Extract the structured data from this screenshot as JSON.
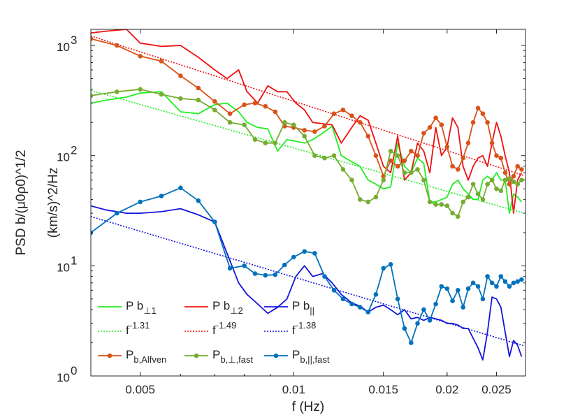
{
  "chart_data": {
    "type": "line",
    "xscale": "log",
    "yscale": "log",
    "xlim": [
      0.004,
      0.0285
    ],
    "ylim": [
      1,
      1400
    ],
    "xlabel": "f (Hz)",
    "ylabel_line1": "PSD b/(μ0ρ0)^1/2",
    "ylabel_line2": "(km/s)^2/Hz",
    "xticks": [
      {
        "value": 0.005,
        "label": "0.005"
      },
      {
        "value": 0.01,
        "label": "0.01"
      },
      {
        "value": 0.015,
        "label": "0.015"
      },
      {
        "value": 0.02,
        "label": "0.02"
      },
      {
        "value": 0.025,
        "label": "0.025"
      }
    ],
    "yticks": [
      {
        "value": 1,
        "base": "10",
        "exp": "0"
      },
      {
        "value": 10,
        "base": "10",
        "exp": "1"
      },
      {
        "value": 100,
        "base": "10",
        "exp": "2"
      },
      {
        "value": 1000,
        "base": "10",
        "exp": "3"
      }
    ],
    "series": [
      {
        "name": "Pb_perp1",
        "label_main": "P b",
        "label_sub": "⊥1",
        "color": "#22ee22",
        "style": "solid",
        "markers": false,
        "x": [
          0.004,
          0.0043,
          0.0047,
          0.005,
          0.0055,
          0.006,
          0.0065,
          0.007,
          0.0074,
          0.0078,
          0.0081,
          0.0085,
          0.0089,
          0.0093,
          0.0097,
          0.0101,
          0.0105,
          0.0109,
          0.0114,
          0.0119,
          0.0124,
          0.013,
          0.0135,
          0.014,
          0.0145,
          0.015,
          0.0155,
          0.016,
          0.0165,
          0.017,
          0.0175,
          0.018,
          0.0185,
          0.019,
          0.0195,
          0.02,
          0.0205,
          0.021,
          0.0215,
          0.022,
          0.0225,
          0.023,
          0.0235,
          0.024,
          0.0245,
          0.025,
          0.0255,
          0.026,
          0.0265,
          0.027,
          0.0275,
          0.028
        ],
        "y": [
          300,
          320,
          340,
          370,
          380,
          250,
          240,
          290,
          300,
          250,
          200,
          180,
          175,
          110,
          140,
          135,
          130,
          140,
          160,
          185,
          100,
          88,
          80,
          60,
          55,
          50,
          52,
          130,
          80,
          70,
          95,
          85,
          38,
          38,
          40,
          42,
          55,
          60,
          50,
          45,
          40,
          40,
          60,
          65,
          60,
          70,
          60,
          60,
          30,
          45,
          42,
          38
        ]
      },
      {
        "name": "Pb_perp2",
        "label_main": "P b",
        "label_sub": "⊥2",
        "color": "#ee1111",
        "style": "solid",
        "markers": false,
        "x": [
          0.004,
          0.0043,
          0.0047,
          0.005,
          0.0055,
          0.006,
          0.0065,
          0.007,
          0.0074,
          0.0078,
          0.0081,
          0.0085,
          0.0089,
          0.0093,
          0.0097,
          0.0101,
          0.0105,
          0.0109,
          0.0114,
          0.0119,
          0.0124,
          0.013,
          0.0135,
          0.014,
          0.0145,
          0.015,
          0.0155,
          0.016,
          0.0165,
          0.017,
          0.0175,
          0.018,
          0.0185,
          0.019,
          0.0195,
          0.02,
          0.0205,
          0.021,
          0.0215,
          0.022,
          0.0225,
          0.023,
          0.0235,
          0.024,
          0.0245,
          0.025,
          0.0255,
          0.026,
          0.0265,
          0.027,
          0.0275,
          0.028
        ],
        "y": [
          1300,
          1350,
          1400,
          1050,
          980,
          1000,
          780,
          600,
          500,
          600,
          380,
          300,
          430,
          380,
          380,
          300,
          260,
          200,
          195,
          190,
          130,
          180,
          230,
          210,
          130,
          80,
          70,
          150,
          60,
          70,
          130,
          110,
          70,
          180,
          100,
          120,
          220,
          180,
          80,
          60,
          80,
          95,
          100,
          80,
          130,
          200,
          150,
          100,
          70,
          30,
          60,
          70
        ]
      },
      {
        "name": "Pb_par",
        "label_main": "P b",
        "label_sub": "||",
        "color": "#1515dd",
        "style": "solid",
        "markers": false,
        "x": [
          0.004,
          0.0043,
          0.0047,
          0.005,
          0.0055,
          0.006,
          0.0065,
          0.007,
          0.0074,
          0.0078,
          0.0081,
          0.0085,
          0.0089,
          0.0093,
          0.0097,
          0.0101,
          0.0105,
          0.0109,
          0.0114,
          0.0119,
          0.0124,
          0.013,
          0.0135,
          0.014,
          0.0145,
          0.015,
          0.0155,
          0.016,
          0.0165,
          0.017,
          0.0175,
          0.018,
          0.0185,
          0.019,
          0.0195,
          0.02,
          0.0205,
          0.021,
          0.0215,
          0.022,
          0.0225,
          0.023,
          0.0235,
          0.024,
          0.0245,
          0.025,
          0.0255,
          0.026,
          0.0265,
          0.027,
          0.0275,
          0.028
        ],
        "y": [
          35,
          32,
          30,
          30,
          31,
          33,
          29,
          25,
          13,
          7,
          5.5,
          4.5,
          3.7,
          4.2,
          5,
          8,
          10,
          8,
          8.5,
          7,
          5.5,
          4.6,
          4.3,
          3.8,
          4.2,
          4.4,
          4.0,
          3.6,
          4.0,
          3.3,
          3.4,
          3.2,
          3.4,
          3.3,
          3.2,
          3.0,
          3.0,
          2.9,
          2.7,
          2.7,
          2.2,
          1.8,
          1.4,
          2.5,
          5.2,
          5.0,
          4.2,
          2.5,
          1.5,
          2.1,
          1.9,
          1.5
        ]
      },
      {
        "name": "fit_perp1",
        "label_main": "f",
        "label_exp": "-1.31",
        "color": "#22ee22",
        "style": "dotted",
        "markers": false,
        "fit": {
          "amp": 390,
          "x0": 0.004,
          "slope": -1.31,
          "xmin": 0.004,
          "xmax": 0.0282
        }
      },
      {
        "name": "fit_perp2",
        "label_main": "f",
        "label_exp": "-1.49",
        "color": "#ee1111",
        "style": "dotted",
        "markers": false,
        "fit": {
          "amp": 1220,
          "x0": 0.004,
          "slope": -1.49,
          "xmin": 0.004,
          "xmax": 0.0282
        }
      },
      {
        "name": "fit_par",
        "label_main": "f",
        "label_exp": "-1.38",
        "color": "#1515dd",
        "style": "dotted",
        "markers": false,
        "fit": {
          "amp": 28,
          "x0": 0.004,
          "slope": -1.38,
          "xmin": 0.004,
          "xmax": 0.0282
        }
      },
      {
        "name": "Pb_Alfven",
        "label_main": "P",
        "label_sub": "b,Alfven",
        "color": "#d95319",
        "style": "solid",
        "markers": true,
        "x": [
          0.004,
          0.0045,
          0.005,
          0.0055,
          0.006,
          0.0065,
          0.007,
          0.0075,
          0.008,
          0.0084,
          0.0088,
          0.0092,
          0.0096,
          0.01,
          0.0105,
          0.011,
          0.0115,
          0.012,
          0.0125,
          0.013,
          0.0135,
          0.014,
          0.0145,
          0.015,
          0.0155,
          0.016,
          0.0165,
          0.017,
          0.0175,
          0.018,
          0.0185,
          0.019,
          0.0195,
          0.02,
          0.0205,
          0.021,
          0.0215,
          0.022,
          0.0225,
          0.023,
          0.0235,
          0.024,
          0.0245,
          0.025,
          0.0255,
          0.026,
          0.0265,
          0.027,
          0.0275,
          0.028
        ],
        "y": [
          1150,
          1000,
          800,
          720,
          530,
          410,
          310,
          240,
          290,
          300,
          280,
          250,
          185,
          180,
          170,
          165,
          185,
          240,
          260,
          230,
          200,
          150,
          100,
          65,
          90,
          80,
          90,
          110,
          100,
          160,
          180,
          220,
          190,
          120,
          80,
          75,
          95,
          130,
          200,
          270,
          240,
          200,
          130,
          100,
          95,
          70,
          55,
          65,
          80,
          75
        ]
      },
      {
        "name": "Pb_perp_fast",
        "label_main": "P",
        "label_sub": "b,⊥,fast",
        "color": "#77ac30",
        "style": "solid",
        "markers": true,
        "x": [
          0.004,
          0.0045,
          0.005,
          0.0055,
          0.006,
          0.0065,
          0.007,
          0.0075,
          0.008,
          0.0084,
          0.0088,
          0.0092,
          0.0096,
          0.01,
          0.0105,
          0.011,
          0.0115,
          0.012,
          0.0125,
          0.013,
          0.0135,
          0.014,
          0.0145,
          0.015,
          0.0155,
          0.016,
          0.0165,
          0.017,
          0.0175,
          0.018,
          0.0185,
          0.019,
          0.0195,
          0.02,
          0.0205,
          0.021,
          0.0215,
          0.022,
          0.0225,
          0.023,
          0.0235,
          0.024,
          0.0245,
          0.025,
          0.0255,
          0.026,
          0.0265,
          0.027,
          0.0275,
          0.028
        ],
        "y": [
          350,
          380,
          400,
          360,
          330,
          320,
          260,
          200,
          190,
          140,
          130,
          130,
          200,
          190,
          150,
          100,
          95,
          100,
          75,
          60,
          40,
          38,
          42,
          60,
          110,
          100,
          70,
          70,
          75,
          60,
          38,
          36,
          36,
          35,
          30,
          28,
          38,
          42,
          55,
          45,
          40,
          55,
          60,
          50,
          48,
          60,
          62,
          58,
          55,
          60
        ]
      },
      {
        "name": "Pb_par_fast",
        "label_main": "P",
        "label_sub": "b,||,fast",
        "color": "#0072bd",
        "style": "solid",
        "markers": true,
        "x": [
          0.004,
          0.0045,
          0.005,
          0.0055,
          0.006,
          0.0065,
          0.007,
          0.0075,
          0.008,
          0.0084,
          0.0088,
          0.0092,
          0.0096,
          0.01,
          0.0105,
          0.011,
          0.0115,
          0.012,
          0.0125,
          0.013,
          0.0135,
          0.014,
          0.0145,
          0.015,
          0.0155,
          0.016,
          0.0165,
          0.017,
          0.0175,
          0.018,
          0.0185,
          0.019,
          0.0195,
          0.02,
          0.0205,
          0.021,
          0.0215,
          0.022,
          0.0225,
          0.023,
          0.0235,
          0.024,
          0.0245,
          0.025,
          0.0255,
          0.026,
          0.0265,
          0.027,
          0.0275,
          0.028
        ],
        "y": [
          20,
          30,
          38,
          43,
          51,
          39,
          25,
          9.5,
          10,
          8.5,
          8.2,
          8.3,
          10.2,
          12,
          13.5,
          13,
          8,
          6,
          5,
          4.5,
          4.2,
          3.8,
          5.5,
          9.5,
          10.3,
          5,
          2.7,
          2.0,
          3.0,
          4.0,
          3.2,
          4.5,
          6.5,
          6.2,
          4.8,
          6.0,
          4.2,
          6.2,
          7.0,
          6.5,
          5.0,
          8.0,
          7.0,
          6.5,
          8.0,
          7.2,
          6.5,
          7.0,
          7.2,
          7.5
        ]
      }
    ],
    "legend": {
      "position": "bottom-left",
      "columns": 3
    }
  }
}
